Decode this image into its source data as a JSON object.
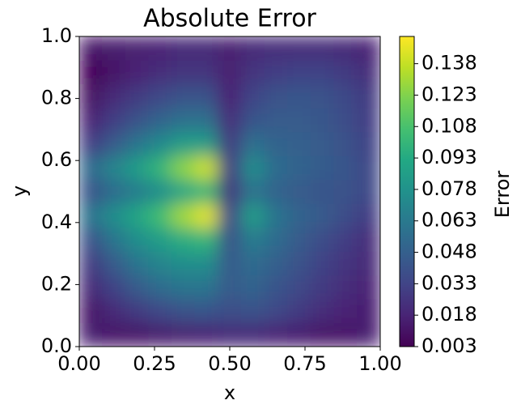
{
  "chart_data": {
    "type": "heatmap",
    "title": "Absolute Error",
    "xlabel": "x",
    "ylabel": "y",
    "colorbar_label": "Error",
    "colormap": "viridis",
    "xlim": [
      0,
      1
    ],
    "ylim": [
      0,
      1
    ],
    "xticks": [
      {
        "value": 0,
        "label": "0.00"
      },
      {
        "value": 0.25,
        "label": "0.25"
      },
      {
        "value": 0.5,
        "label": "0.50"
      },
      {
        "value": 0.75,
        "label": "0.75"
      },
      {
        "value": 1,
        "label": "1.00"
      }
    ],
    "yticks": [
      {
        "value": 0,
        "label": "0.0"
      },
      0.2,
      0.4,
      0.6,
      0.8,
      {
        "value": 1,
        "label": "1.0"
      }
    ],
    "zlim": [
      0.003,
      0.151
    ],
    "zticks": [
      0.003,
      0.018,
      0.033,
      0.048,
      0.063,
      0.078,
      0.093,
      0.108,
      0.123,
      0.138
    ],
    "x": [
      0.038,
      0.115,
      0.192,
      0.269,
      0.346,
      0.423,
      0.5,
      0.577,
      0.654,
      0.731,
      0.808,
      0.885,
      0.962
    ],
    "y": [
      0.038,
      0.115,
      0.192,
      0.269,
      0.346,
      0.423,
      0.5,
      0.577,
      0.654,
      0.731,
      0.808,
      0.885,
      0.962
    ],
    "z": [
      [
        0.015,
        0.012,
        0.012,
        0.014,
        0.016,
        0.018,
        0.02,
        0.02,
        0.018,
        0.015,
        0.012,
        0.012,
        0.015
      ],
      [
        0.012,
        0.02,
        0.028,
        0.035,
        0.04,
        0.042,
        0.038,
        0.04,
        0.035,
        0.028,
        0.022,
        0.018,
        0.015
      ],
      [
        0.02,
        0.032,
        0.045,
        0.055,
        0.06,
        0.06,
        0.045,
        0.05,
        0.042,
        0.035,
        0.028,
        0.022,
        0.018
      ],
      [
        0.028,
        0.045,
        0.06,
        0.07,
        0.075,
        0.075,
        0.045,
        0.055,
        0.048,
        0.04,
        0.032,
        0.025,
        0.02
      ],
      [
        0.04,
        0.06,
        0.075,
        0.085,
        0.095,
        0.1,
        0.04,
        0.065,
        0.055,
        0.045,
        0.038,
        0.03,
        0.022
      ],
      [
        0.06,
        0.075,
        0.09,
        0.105,
        0.13,
        0.145,
        0.035,
        0.085,
        0.06,
        0.05,
        0.045,
        0.038,
        0.03
      ],
      [
        0.04,
        0.055,
        0.065,
        0.075,
        0.09,
        0.1,
        0.025,
        0.06,
        0.05,
        0.045,
        0.042,
        0.04,
        0.035
      ],
      [
        0.055,
        0.07,
        0.085,
        0.1,
        0.125,
        0.14,
        0.03,
        0.075,
        0.055,
        0.05,
        0.046,
        0.042,
        0.035
      ],
      [
        0.03,
        0.045,
        0.06,
        0.072,
        0.085,
        0.085,
        0.028,
        0.058,
        0.05,
        0.048,
        0.045,
        0.04,
        0.032
      ],
      [
        0.018,
        0.03,
        0.04,
        0.05,
        0.058,
        0.058,
        0.022,
        0.042,
        0.045,
        0.045,
        0.043,
        0.038,
        0.03
      ],
      [
        0.01,
        0.02,
        0.028,
        0.035,
        0.04,
        0.04,
        0.018,
        0.033,
        0.04,
        0.042,
        0.04,
        0.036,
        0.028
      ],
      [
        0.005,
        0.012,
        0.018,
        0.022,
        0.025,
        0.025,
        0.016,
        0.025,
        0.03,
        0.032,
        0.032,
        0.028,
        0.022
      ],
      [
        0.012,
        0.014,
        0.016,
        0.018,
        0.02,
        0.02,
        0.016,
        0.02,
        0.022,
        0.022,
        0.022,
        0.02,
        0.018
      ]
    ]
  }
}
